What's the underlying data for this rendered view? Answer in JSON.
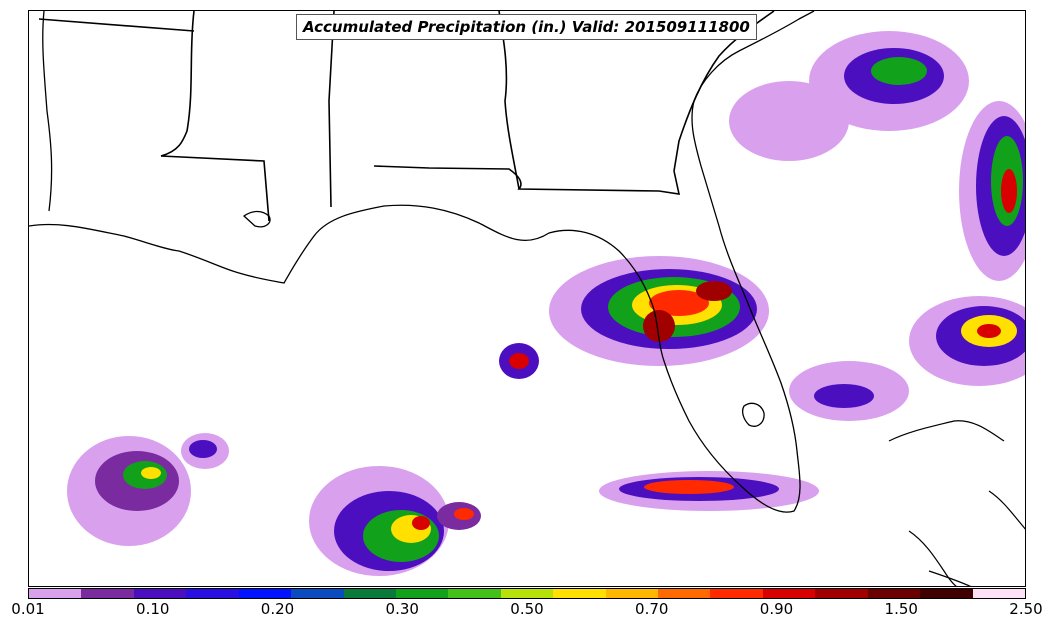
{
  "map": {
    "title": "Accumulated Precipitation (in.) Valid: 201509111800",
    "units": "in.",
    "valid_time": "201509111800"
  },
  "colorbar": {
    "colors": [
      "#d9a0ee",
      "#7a2ba0",
      "#4b0fbf",
      "#2a10e0",
      "#0014ff",
      "#0a4cc0",
      "#0a7a3a",
      "#11a11a",
      "#44c01a",
      "#b6e10a",
      "#ffe000",
      "#ffb800",
      "#ff6a00",
      "#ff2a00",
      "#d80000",
      "#a00000",
      "#6a0000",
      "#400000",
      "#ffe2f8"
    ],
    "tick_labels": [
      "0.01",
      "0.10",
      "0.20",
      "0.30",
      "0.50",
      "0.70",
      "0.90",
      "1.50",
      "2.50"
    ]
  }
}
